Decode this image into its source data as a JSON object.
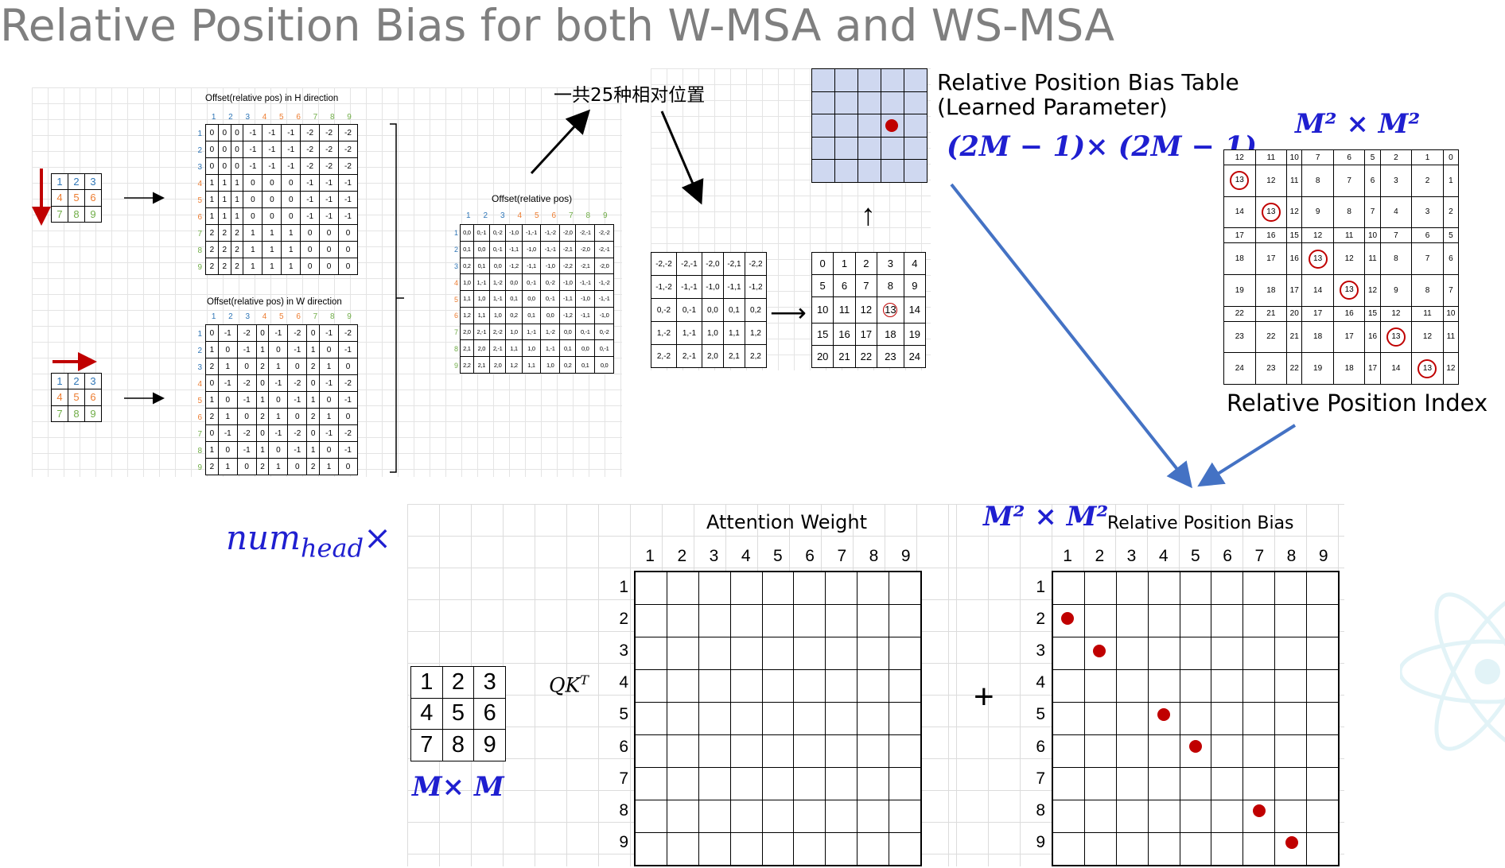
{
  "title": "Relative Position Bias for both W-MSA and WS-MSA",
  "top_left": {
    "h_title": "Offset(relative pos) in H direction",
    "w_title": "Offset(relative pos) in W direction",
    "idx": [
      "1",
      "2",
      "3",
      "4",
      "5",
      "6",
      "7",
      "8",
      "9"
    ],
    "h_rows": [
      [
        "0",
        "0",
        "0",
        "-1",
        "-1",
        "-1",
        "-2",
        "-2",
        "-2"
      ],
      [
        "0",
        "0",
        "0",
        "-1",
        "-1",
        "-1",
        "-2",
        "-2",
        "-2"
      ],
      [
        "0",
        "0",
        "0",
        "-1",
        "-1",
        "-1",
        "-2",
        "-2",
        "-2"
      ],
      [
        "1",
        "1",
        "1",
        "0",
        "0",
        "0",
        "-1",
        "-1",
        "-1"
      ],
      [
        "1",
        "1",
        "1",
        "0",
        "0",
        "0",
        "-1",
        "-1",
        "-1"
      ],
      [
        "1",
        "1",
        "1",
        "0",
        "0",
        "0",
        "-1",
        "-1",
        "-1"
      ],
      [
        "2",
        "2",
        "2",
        "1",
        "1",
        "1",
        "0",
        "0",
        "0"
      ],
      [
        "2",
        "2",
        "2",
        "1",
        "1",
        "1",
        "0",
        "0",
        "0"
      ],
      [
        "2",
        "2",
        "2",
        "1",
        "1",
        "1",
        "0",
        "0",
        "0"
      ]
    ],
    "w_rows": [
      [
        "0",
        "-1",
        "-2",
        "0",
        "-1",
        "-2",
        "0",
        "-1",
        "-2"
      ],
      [
        "1",
        "0",
        "-1",
        "1",
        "0",
        "-1",
        "1",
        "0",
        "-1"
      ],
      [
        "2",
        "1",
        "0",
        "2",
        "1",
        "0",
        "2",
        "1",
        "0"
      ],
      [
        "0",
        "-1",
        "-2",
        "0",
        "-1",
        "-2",
        "0",
        "-1",
        "-2"
      ],
      [
        "1",
        "0",
        "-1",
        "1",
        "0",
        "-1",
        "1",
        "0",
        "-1"
      ],
      [
        "2",
        "1",
        "0",
        "2",
        "1",
        "0",
        "2",
        "1",
        "0"
      ],
      [
        "0",
        "-1",
        "-2",
        "0",
        "-1",
        "-2",
        "0",
        "-1",
        "-2"
      ],
      [
        "1",
        "0",
        "-1",
        "1",
        "0",
        "-1",
        "1",
        "0",
        "-1"
      ],
      [
        "2",
        "1",
        "0",
        "2",
        "1",
        "0",
        "2",
        "1",
        "0"
      ]
    ],
    "small_grid": [
      [
        "1",
        "2",
        "3"
      ],
      [
        "4",
        "5",
        "6"
      ],
      [
        "7",
        "8",
        "9"
      ]
    ],
    "comb_title": "Offset(relative pos)",
    "comb_rows": [
      [
        "0,0",
        "0,-1",
        "0,-2",
        "-1,0",
        "-1,-1",
        "-1,-2",
        "-2,0",
        "-2,-1",
        "-2,-2"
      ],
      [
        "0,1",
        "0,0",
        "0,-1",
        "-1,1",
        "-1,0",
        "-1,-1",
        "-2,1",
        "-2,0",
        "-2,-1"
      ],
      [
        "0,2",
        "0,1",
        "0,0",
        "-1,2",
        "-1,1",
        "-1,0",
        "-2,2",
        "-2,1",
        "-2,0"
      ],
      [
        "1,0",
        "1,-1",
        "1,-2",
        "0,0",
        "0,-1",
        "0,-2",
        "-1,0",
        "-1,-1",
        "-1,-2"
      ],
      [
        "1,1",
        "1,0",
        "1,-1",
        "0,1",
        "0,0",
        "0,-1",
        "-1,1",
        "-1,0",
        "-1,-1"
      ],
      [
        "1,2",
        "1,1",
        "1,0",
        "0,2",
        "0,1",
        "0,0",
        "-1,2",
        "-1,1",
        "-1,0"
      ],
      [
        "2,0",
        "2,-1",
        "2,-2",
        "1,0",
        "1,-1",
        "1,-2",
        "0,0",
        "0,-1",
        "0,-2"
      ],
      [
        "2,1",
        "2,0",
        "2,-1",
        "1,1",
        "1,0",
        "1,-1",
        "0,1",
        "0,0",
        "0,-1"
      ],
      [
        "2,2",
        "2,1",
        "2,0",
        "1,2",
        "1,1",
        "1,0",
        "0,2",
        "0,1",
        "0,0"
      ]
    ]
  },
  "middle": {
    "note": "一共25种相对位置",
    "offsets": [
      [
        "-2,-2",
        "-2,-1",
        "-2,0",
        "-2,1",
        "-2,2"
      ],
      [
        "-1,-2",
        "-1,-1",
        "-1,0",
        "-1,1",
        "-1,2"
      ],
      [
        "0,-2",
        "0,-1",
        "0,0",
        "0,1",
        "0,2"
      ],
      [
        "1,-2",
        "1,-1",
        "1,0",
        "1,1",
        "1,2"
      ],
      [
        "2,-2",
        "2,-1",
        "2,0",
        "2,1",
        "2,2"
      ]
    ],
    "indices": [
      [
        "0",
        "1",
        "2",
        "3",
        "4"
      ],
      [
        "5",
        "6",
        "7",
        "8",
        "9"
      ],
      [
        "10",
        "11",
        "12",
        "13",
        "14"
      ],
      [
        "15",
        "16",
        "17",
        "18",
        "19"
      ],
      [
        "20",
        "21",
        "22",
        "23",
        "24"
      ]
    ],
    "bias_table_label_1": "Relative Position Bias Table",
    "bias_table_label_2": "(Learned Parameter)",
    "bias_table_size": "(2M − 1)× (2M − 1)",
    "up_arrow": "↑",
    "right_arrow": "⟶"
  },
  "right_top": {
    "size_label": "M² × M²",
    "index_rows": [
      [
        "12",
        "11",
        "10",
        "7",
        "6",
        "5",
        "2",
        "1",
        "0"
      ],
      [
        "13",
        "12",
        "11",
        "8",
        "7",
        "6",
        "3",
        "2",
        "1"
      ],
      [
        "14",
        "13",
        "12",
        "9",
        "8",
        "7",
        "4",
        "3",
        "2"
      ],
      [
        "17",
        "16",
        "15",
        "12",
        "11",
        "10",
        "7",
        "6",
        "5"
      ],
      [
        "18",
        "17",
        "16",
        "13",
        "12",
        "11",
        "8",
        "7",
        "6"
      ],
      [
        "19",
        "18",
        "17",
        "14",
        "13",
        "12",
        "9",
        "8",
        "7"
      ],
      [
        "22",
        "21",
        "20",
        "17",
        "16",
        "15",
        "12",
        "11",
        "10"
      ],
      [
        "23",
        "22",
        "21",
        "18",
        "17",
        "16",
        "13",
        "12",
        "11"
      ],
      [
        "24",
        "23",
        "22",
        "19",
        "18",
        "17",
        "14",
        "13",
        "12"
      ]
    ],
    "index_label": "Relative Position Index"
  },
  "bottom": {
    "num_head_base": "num",
    "num_head_sub": "head",
    "num_head_times": "×",
    "window_grid": [
      [
        "1",
        "2",
        "3"
      ],
      [
        "4",
        "5",
        "6"
      ],
      [
        "7",
        "8",
        "9"
      ]
    ],
    "window_label": "M× M",
    "qk_label": "QK",
    "qk_sup": "T",
    "attn_title": "Attention Weight",
    "axis": [
      "1",
      "2",
      "3",
      "4",
      "5",
      "6",
      "7",
      "8",
      "9"
    ],
    "plus": "+",
    "bias_size": "M² × M²",
    "bias_title": "Relative Position Bias"
  },
  "colors": {
    "title": "#7f7f7f",
    "math": "#1f1fd0",
    "marker": "#c00000",
    "arrow_blue": "#4472c4",
    "idx_blue": "#2e75b6",
    "idx_orange": "#ed7d31",
    "idx_green": "#70ad47"
  }
}
